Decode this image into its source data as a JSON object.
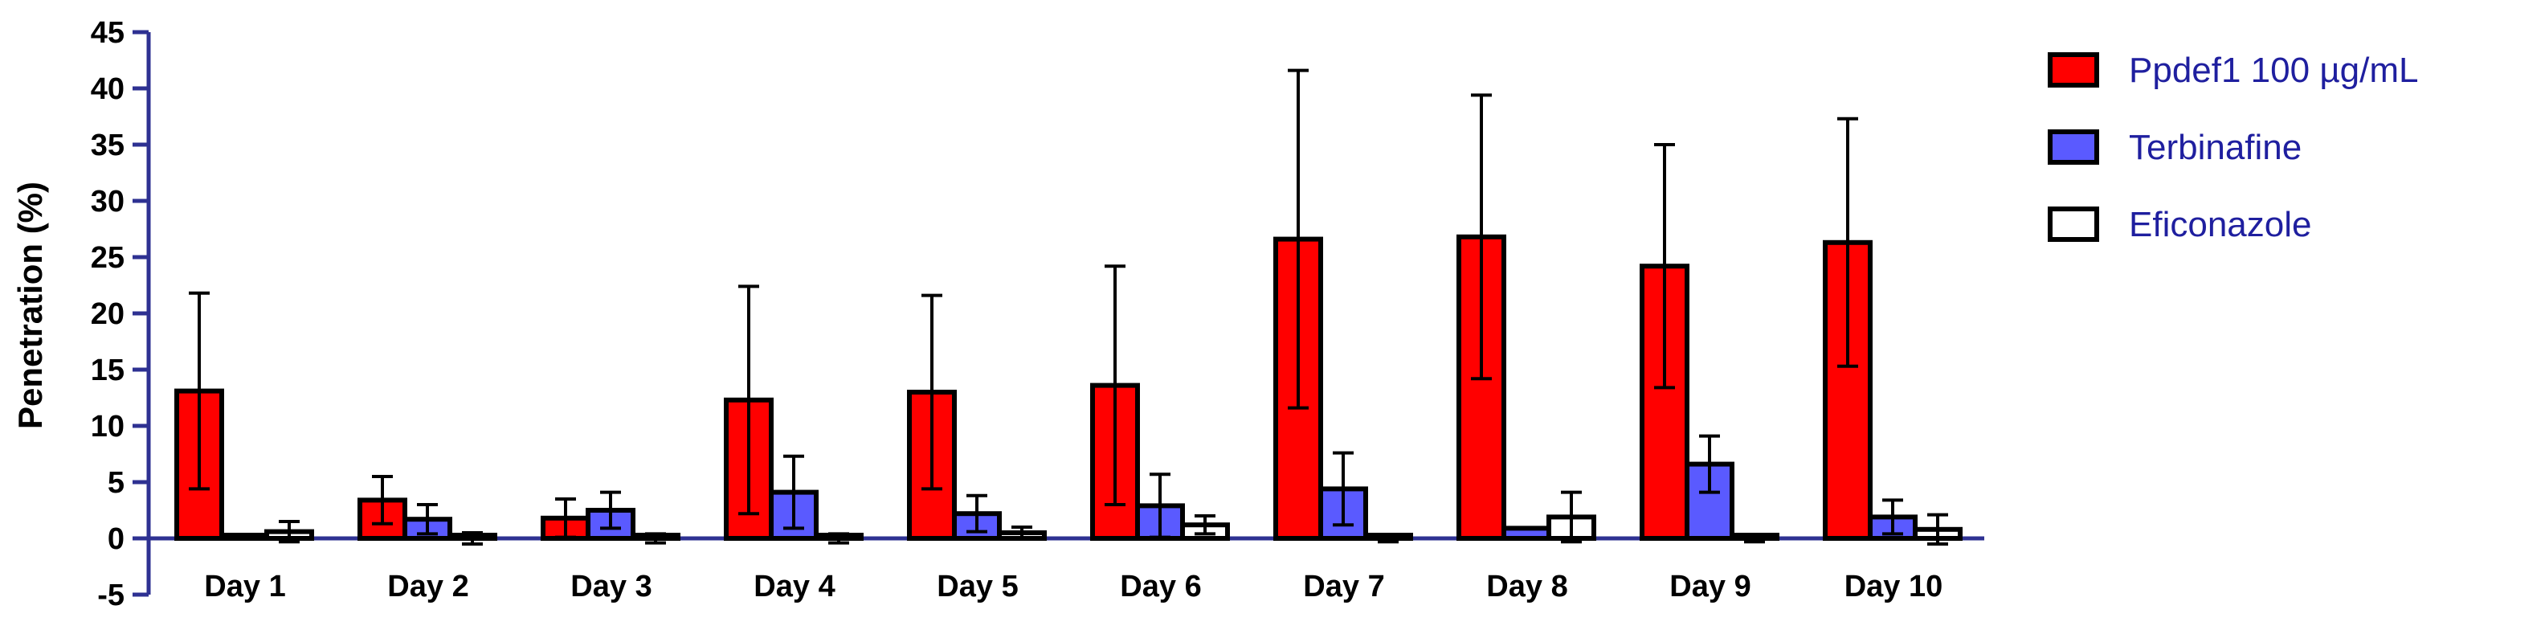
{
  "chart_data": {
    "type": "bar",
    "ylabel": "Penetration (%)",
    "ylim": [
      -5,
      45
    ],
    "yticks": [
      "-5",
      "0",
      "5",
      "10",
      "15",
      "20",
      "25",
      "30",
      "35",
      "40",
      "45"
    ],
    "categories": [
      "Day 1",
      "Day 2",
      "Day 3",
      "Day 4",
      "Day 5",
      "Day 6",
      "Day 7",
      "Day 8",
      "Day 9",
      "Day 10"
    ],
    "legend_position": "right",
    "grid": false,
    "series": [
      {
        "name": "Ppdef1 100 µg/mL",
        "color": "#ff0000",
        "values": [
          13.1,
          3.4,
          1.8,
          12.3,
          13.0,
          13.6,
          26.6,
          26.8,
          24.2,
          26.3
        ],
        "errors": [
          8.7,
          2.1,
          1.7,
          10.1,
          8.6,
          10.6,
          15.0,
          12.6,
          10.8,
          11.0
        ]
      },
      {
        "name": "Terbinafine",
        "color": "#5a5aff",
        "values": [
          0.0,
          1.7,
          2.5,
          4.1,
          2.2,
          2.9,
          4.4,
          0.9,
          6.6,
          1.9
        ],
        "errors": [
          0.0,
          1.3,
          1.6,
          3.2,
          1.6,
          2.8,
          3.2,
          0.0,
          2.5,
          1.5
        ]
      },
      {
        "name": "Eficonazole",
        "color": "#ffffff",
        "values": [
          0.6,
          0.0,
          0.0,
          0.0,
          0.5,
          1.2,
          0.0,
          1.9,
          0.0,
          0.8
        ],
        "errors": [
          0.9,
          0.5,
          0.4,
          0.4,
          0.5,
          0.8,
          0.3,
          2.2,
          0.3,
          1.3
        ]
      }
    ],
    "axis_color": "#2e3192",
    "bar_stroke": "#000000",
    "label_color": "#000000",
    "legend_text_color": "#1f1f9f"
  }
}
